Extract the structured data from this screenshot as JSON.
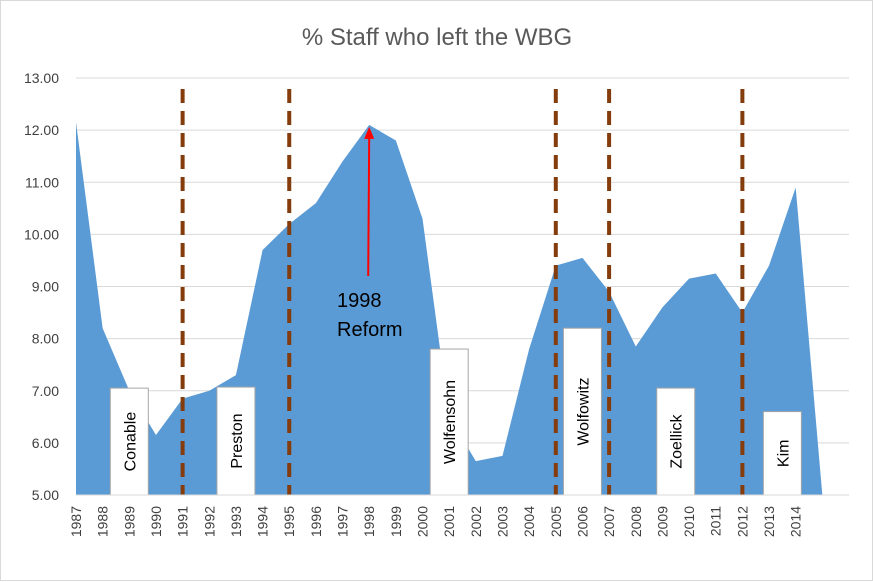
{
  "chart_data": {
    "type": "area",
    "title": "% Staff who left the WBG",
    "xlabel": "",
    "ylabel": "",
    "ylim": [
      5,
      13
    ],
    "yticks": [
      "5.00",
      "6.00",
      "7.00",
      "8.00",
      "9.00",
      "10.00",
      "11.00",
      "12.00",
      "13.00"
    ],
    "x": [
      "1987",
      "1988",
      "1989",
      "1990",
      "1991",
      "1992",
      "1993",
      "1994",
      "1995",
      "1996",
      "1997",
      "1998",
      "1999",
      "2000",
      "2001",
      "2002",
      "2003",
      "2004",
      "2005",
      "2006",
      "2007",
      "2008",
      "2009",
      "2010",
      "2011",
      "2012",
      "2013",
      "2014",
      "",
      ""
    ],
    "values": [
      12.15,
      8.2,
      7.0,
      6.15,
      6.85,
      7.0,
      7.3,
      9.7,
      10.2,
      10.6,
      11.4,
      12.1,
      11.8,
      10.3,
      6.5,
      5.65,
      5.75,
      7.8,
      9.4,
      9.55,
      8.9,
      7.85,
      8.6,
      9.15,
      9.25,
      8.5,
      9.4,
      10.9,
      5.0,
      5.0
    ],
    "grid": true,
    "legend": "none",
    "color": "#5b9bd5",
    "reform_lines": [
      1991,
      1995,
      2005,
      2007,
      2012
    ],
    "reform_line_color": "#843c0c",
    "annotation": {
      "text": [
        "1998",
        "Reform"
      ],
      "year": 1998,
      "value": 12.1,
      "color": "#ff0000"
    },
    "presidents": [
      {
        "name": "Conable",
        "year": 1989,
        "top": 7.05
      },
      {
        "name": "Preston",
        "year": 1993,
        "top": 7.07
      },
      {
        "name": "Wolfensohn",
        "year": 2001,
        "top": 7.8
      },
      {
        "name": "Wolfowitz",
        "year": 2006,
        "top": 8.2
      },
      {
        "name": "Zoellick",
        "year": 2009.5,
        "top": 7.05
      },
      {
        "name": "Kim",
        "year": 2013.5,
        "top": 6.6
      }
    ]
  }
}
